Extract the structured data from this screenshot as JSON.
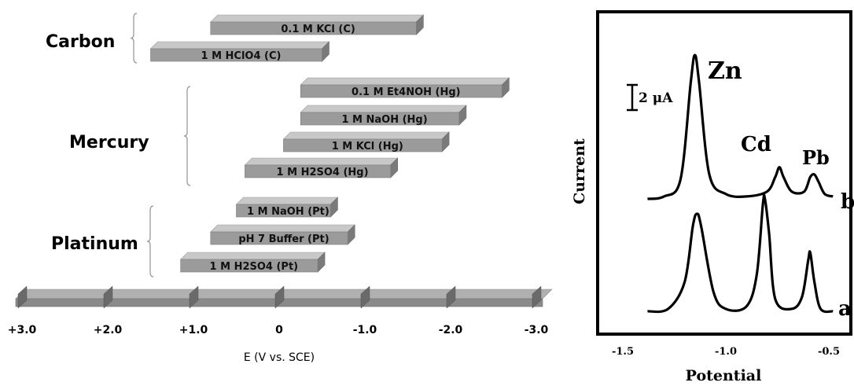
{
  "chart_data": [
    {
      "type": "bar",
      "xlabel": "E (V vs. SCE)",
      "x_axis_ticks": [
        "+3.0",
        "+2.0",
        "+1.0",
        "0",
        "-1.0",
        "-2.0",
        "-3.0"
      ],
      "xlim": [
        3.0,
        -3.0
      ],
      "groups": [
        {
          "name": "Carbon",
          "windows": [
            {
              "label": "0.1 M KCl (C)",
              "start": 0.8,
              "end": -1.6
            },
            {
              "label": "1 M HClO4 (C)",
              "start": 1.5,
              "end": -0.5
            }
          ]
        },
        {
          "name": "Mercury",
          "windows": [
            {
              "label": "0.1 M Et4NOH (Hg)",
              "start": -0.25,
              "end": -2.6
            },
            {
              "label": "1 M NaOH (Hg)",
              "start": -0.25,
              "end": -2.1
            },
            {
              "label": "1 M KCl (Hg)",
              "start": -0.05,
              "end": -1.9
            },
            {
              "label": "1 M H2SO4 (Hg)",
              "start": 0.4,
              "end": -1.3
            }
          ]
        },
        {
          "name": "Platinum",
          "windows": [
            {
              "label": "1 M NaOH (Pt)",
              "start": 0.5,
              "end": -0.6
            },
            {
              "label": "pH 7 Buffer (Pt)",
              "start": 0.8,
              "end": -0.8
            },
            {
              "label": "1 M H2SO4 (Pt)",
              "start": 1.15,
              "end": -0.45
            }
          ]
        }
      ]
    },
    {
      "type": "line",
      "xlabel": "Potential",
      "ylabel": "Current",
      "x_axis_ticks": [
        "-1.5",
        "-1.0",
        "-0.5"
      ],
      "xlim": [
        -1.5,
        -0.4
      ],
      "scale_bar_label": "2 μA",
      "series": [
        {
          "name": "b",
          "x": [
            -1.38,
            -1.3,
            -1.22,
            -1.17,
            -1.15,
            -1.13,
            -1.08,
            -1.0,
            -0.9,
            -0.8,
            -0.76,
            -0.74,
            -0.72,
            -0.68,
            -0.62,
            -0.59,
            -0.57,
            -0.55,
            -0.52,
            -0.48
          ],
          "y": [
            0.0,
            0.1,
            0.8,
            4.8,
            5.9,
            4.8,
            1.0,
            0.2,
            0.1,
            0.3,
            0.9,
            1.3,
            0.9,
            0.3,
            0.3,
            0.9,
            1.0,
            0.7,
            0.2,
            0.1
          ]
        },
        {
          "name": "a",
          "x": [
            -1.38,
            -1.28,
            -1.2,
            -1.16,
            -1.14,
            -1.12,
            -1.06,
            -1.0,
            -0.9,
            -0.85,
            -0.82,
            -0.81,
            -0.79,
            -0.76,
            -0.68,
            -0.63,
            -0.6,
            -0.59,
            -0.57,
            -0.54,
            -0.48
          ],
          "y": [
            0.0,
            0.1,
            1.2,
            3.5,
            4.0,
            3.5,
            0.8,
            0.1,
            0.2,
            1.5,
            4.4,
            4.6,
            3.2,
            0.5,
            0.1,
            0.6,
            2.1,
            2.4,
            1.2,
            0.1,
            0.0
          ]
        }
      ],
      "peak_labels": [
        "Zn",
        "Cd",
        "Pb"
      ]
    }
  ]
}
